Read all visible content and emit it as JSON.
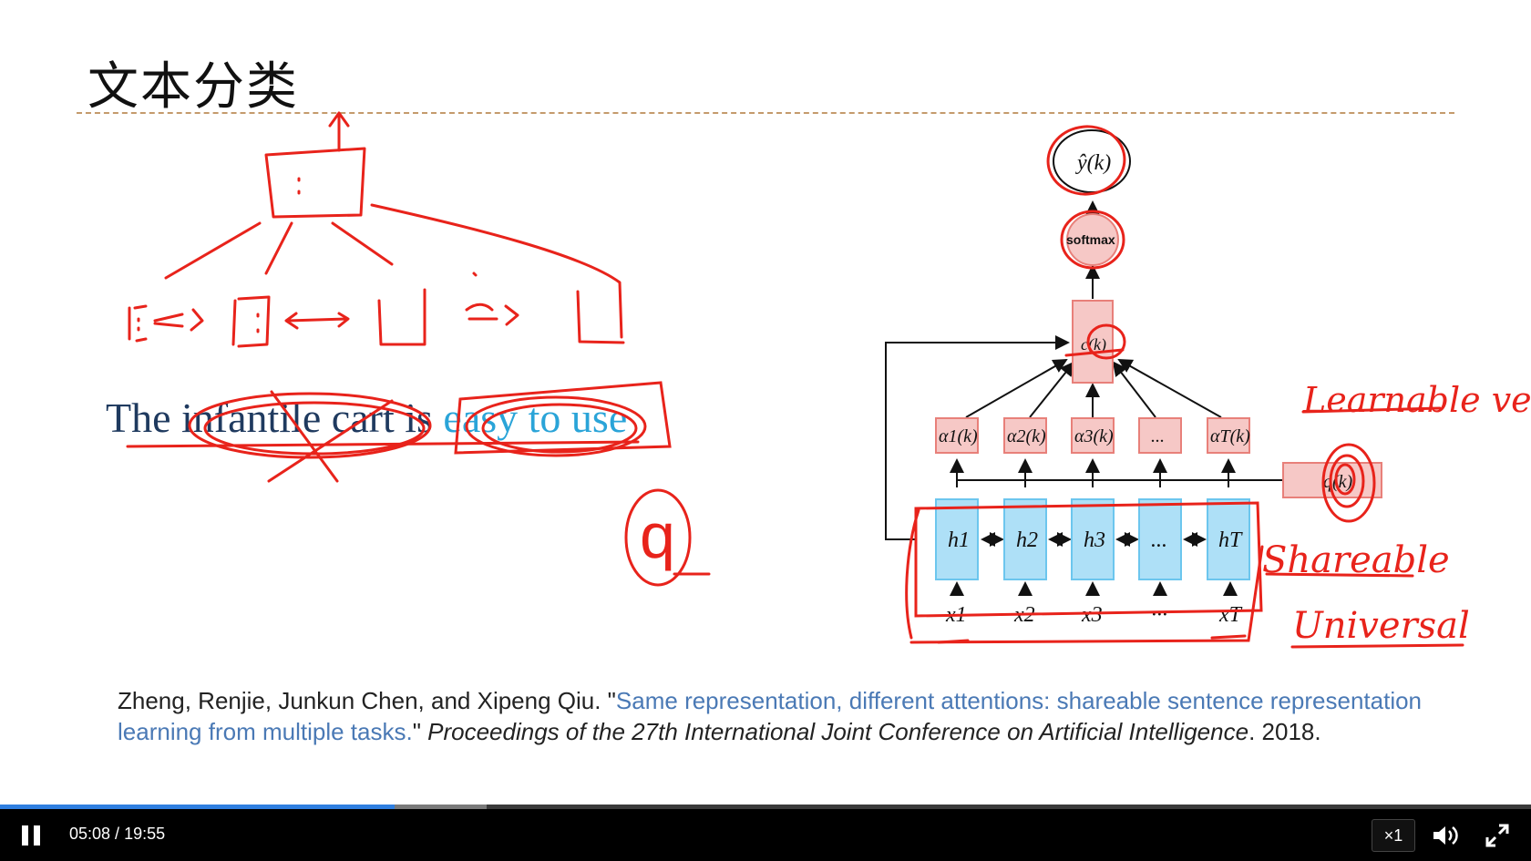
{
  "slide": {
    "title": "文本分类",
    "sentence_plain": "The infantile cart is ",
    "sentence_highlight": "easy to use",
    "citation_authors": "Zheng, Renjie, Junkun Chen, and Xipeng Qiu. \"",
    "citation_title": "Same representation, different attentions: shareable sentence representation learning from multiple tasks.",
    "citation_after_title": "\" ",
    "citation_venue": "Proceedings of the 27th International Joint Conference on Artificial Intelligence",
    "citation_year": ". 2018."
  },
  "diagram": {
    "output": "ŷ(k)",
    "softmax": "softmax",
    "context": "c(k)",
    "alpha1": "α1(k)",
    "alpha2": "α2(k)",
    "alpha3": "α3(k)",
    "alpha_dots": "...",
    "alphaT": "αT(k)",
    "query": "q(k)",
    "h1": "h1",
    "h2": "h2",
    "h3": "h3",
    "h_dots": "...",
    "hT": "hT",
    "x1": "x1",
    "x2": "x2",
    "x3": "x3",
    "x_dots": "···",
    "xT": "xT"
  },
  "handwriting": {
    "learnable_vector": "Learnable vector",
    "shareable": "Shareable",
    "universal": "Universal",
    "q_circle": "q"
  },
  "player": {
    "current_time": "05:08",
    "separator": " / ",
    "duration": "19:55",
    "speed": "×1",
    "progress_fraction": 0.258,
    "buffered_fraction": 0.318,
    "accent_color": "#2f7fe0"
  }
}
